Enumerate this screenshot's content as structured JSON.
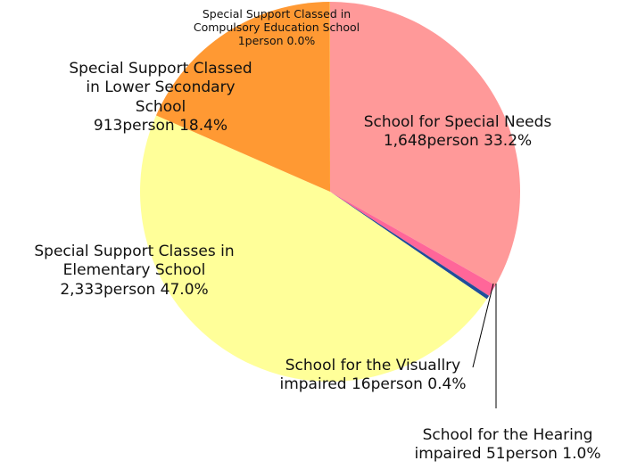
{
  "chart_data": {
    "type": "pie",
    "categories": [
      "School for Special Needs",
      "School for the Hearing impaired",
      "School for the Visuallry impaired",
      "Special Support Classes in Elementary School",
      "Special Support Classed in Lower Secondary School",
      "Special Support Classed in Compulsory Education School"
    ],
    "values": [
      1648,
      51,
      16,
      2333,
      913,
      1
    ],
    "value_labels": [
      "1,648person",
      "51person",
      "16person",
      "2,333person",
      "913person",
      "1person"
    ],
    "percents": [
      33.2,
      1.0,
      0.4,
      47.0,
      18.4,
      0.0
    ],
    "percent_labels": [
      "33.2%",
      "1.0%",
      "0.4%",
      "47.0%",
      "18.4%",
      "0.0%"
    ],
    "colors": [
      "#ff9999",
      "#ff6699",
      "#1f4e9a",
      "#ffff99",
      "#ff9933",
      "#ffcc66"
    ]
  }
}
